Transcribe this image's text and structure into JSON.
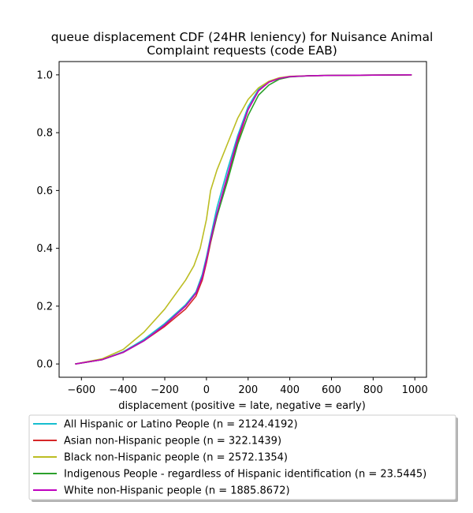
{
  "chart_data": {
    "type": "line",
    "title_line1": "queue displacement CDF (24HR leniency) for Nuisance Animal",
    "title_line2": "Complaint  requests (code EAB)",
    "xlabel": "displacement (positive = late, negative = early)",
    "ylabel": "",
    "xlim": [
      -707,
      1056
    ],
    "ylim": [
      -0.046,
      1.046
    ],
    "xticks": [
      -600,
      -400,
      -200,
      0,
      200,
      400,
      600,
      800,
      1000
    ],
    "yticks": [
      0.0,
      0.2,
      0.4,
      0.6,
      0.8,
      1.0
    ],
    "xtick_labels": [
      "−600",
      "−400",
      "−200",
      "0",
      "200",
      "400",
      "600",
      "800",
      "1000"
    ],
    "ytick_labels": [
      "0.0",
      "0.2",
      "0.4",
      "0.6",
      "0.8",
      "1.0"
    ],
    "grid": false,
    "legend_position": "below",
    "series": [
      {
        "name": "All Hispanic or Latino People (n = 2124.4192)",
        "color": "#17becf",
        "points": [
          [
            -630,
            0.0
          ],
          [
            -500,
            0.015
          ],
          [
            -400,
            0.042
          ],
          [
            -300,
            0.085
          ],
          [
            -200,
            0.14
          ],
          [
            -100,
            0.205
          ],
          [
            -50,
            0.25
          ],
          [
            -20,
            0.31
          ],
          [
            0,
            0.37
          ],
          [
            20,
            0.44
          ],
          [
            50,
            0.54
          ],
          [
            100,
            0.67
          ],
          [
            150,
            0.79
          ],
          [
            200,
            0.89
          ],
          [
            250,
            0.95
          ],
          [
            300,
            0.975
          ],
          [
            350,
            0.988
          ],
          [
            400,
            0.994
          ],
          [
            500,
            0.997
          ],
          [
            600,
            0.998
          ],
          [
            800,
            0.999
          ],
          [
            985,
            1.0
          ]
        ]
      },
      {
        "name": "Asian non-Hispanic people (n = 322.1439)",
        "color": "#d62728",
        "points": [
          [
            -630,
            0.0
          ],
          [
            -500,
            0.015
          ],
          [
            -400,
            0.04
          ],
          [
            -300,
            0.08
          ],
          [
            -200,
            0.13
          ],
          [
            -100,
            0.19
          ],
          [
            -50,
            0.235
          ],
          [
            -20,
            0.29
          ],
          [
            0,
            0.35
          ],
          [
            20,
            0.42
          ],
          [
            50,
            0.51
          ],
          [
            100,
            0.64
          ],
          [
            150,
            0.77
          ],
          [
            200,
            0.88
          ],
          [
            250,
            0.945
          ],
          [
            300,
            0.975
          ],
          [
            350,
            0.988
          ],
          [
            400,
            0.994
          ],
          [
            500,
            0.997
          ],
          [
            600,
            0.998
          ],
          [
            800,
            0.999
          ],
          [
            985,
            1.0
          ]
        ]
      },
      {
        "name": "Black non-Hispanic people (n = 2572.1354)",
        "color": "#bcbd22",
        "points": [
          [
            -630,
            0.0
          ],
          [
            -500,
            0.018
          ],
          [
            -400,
            0.05
          ],
          [
            -300,
            0.11
          ],
          [
            -200,
            0.19
          ],
          [
            -100,
            0.29
          ],
          [
            -60,
            0.34
          ],
          [
            -30,
            0.4
          ],
          [
            0,
            0.5
          ],
          [
            20,
            0.6
          ],
          [
            50,
            0.67
          ],
          [
            100,
            0.76
          ],
          [
            150,
            0.85
          ],
          [
            200,
            0.915
          ],
          [
            250,
            0.955
          ],
          [
            300,
            0.978
          ],
          [
            350,
            0.99
          ],
          [
            400,
            0.995
          ],
          [
            500,
            0.997
          ],
          [
            600,
            0.998
          ],
          [
            800,
            0.999
          ],
          [
            985,
            1.0
          ]
        ]
      },
      {
        "name": "Indigenous People - regardless of Hispanic identification (n = 23.5445)",
        "color": "#2ca02c",
        "points": [
          [
            -630,
            0.0
          ],
          [
            -500,
            0.015
          ],
          [
            -400,
            0.04
          ],
          [
            -300,
            0.08
          ],
          [
            -200,
            0.135
          ],
          [
            -100,
            0.2
          ],
          [
            -50,
            0.245
          ],
          [
            -20,
            0.3
          ],
          [
            0,
            0.36
          ],
          [
            20,
            0.425
          ],
          [
            50,
            0.51
          ],
          [
            100,
            0.63
          ],
          [
            150,
            0.76
          ],
          [
            200,
            0.86
          ],
          [
            250,
            0.93
          ],
          [
            300,
            0.965
          ],
          [
            350,
            0.985
          ],
          [
            400,
            0.993
          ],
          [
            500,
            0.997
          ],
          [
            600,
            0.998
          ],
          [
            800,
            0.999
          ],
          [
            985,
            1.0
          ]
        ]
      },
      {
        "name": "White non-Hispanic people (n = 1885.8672)",
        "color": "#bf00bf",
        "points": [
          [
            -630,
            0.0
          ],
          [
            -500,
            0.015
          ],
          [
            -400,
            0.04
          ],
          [
            -300,
            0.08
          ],
          [
            -200,
            0.135
          ],
          [
            -100,
            0.2
          ],
          [
            -50,
            0.245
          ],
          [
            -20,
            0.3
          ],
          [
            0,
            0.36
          ],
          [
            20,
            0.43
          ],
          [
            50,
            0.52
          ],
          [
            100,
            0.65
          ],
          [
            150,
            0.78
          ],
          [
            200,
            0.88
          ],
          [
            250,
            0.945
          ],
          [
            300,
            0.975
          ],
          [
            350,
            0.988
          ],
          [
            400,
            0.994
          ],
          [
            500,
            0.997
          ],
          [
            600,
            0.998
          ],
          [
            800,
            0.999
          ],
          [
            985,
            1.0
          ]
        ]
      }
    ]
  }
}
